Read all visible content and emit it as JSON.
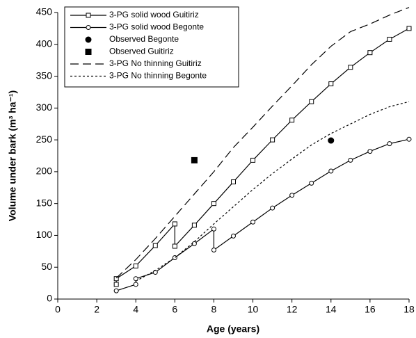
{
  "chart_data": {
    "type": "line",
    "x_label": "Age (years)",
    "y_label": "Volume under bark (m³ ha⁻¹)",
    "xlim": [
      0,
      18
    ],
    "xticks": [
      0,
      2,
      4,
      6,
      8,
      10,
      12,
      14,
      16,
      18
    ],
    "ylim": [
      0,
      450
    ],
    "yticks": [
      0,
      50,
      100,
      150,
      200,
      250,
      300,
      350,
      400,
      450
    ],
    "legend": "upper left",
    "series": [
      {
        "name": "3-PG solid wood Guitiriz",
        "color": "#000000",
        "marker": "square",
        "line": "solid",
        "x": [
          3,
          3,
          4,
          5,
          6,
          6,
          7,
          8,
          9,
          10,
          11,
          12,
          13,
          14,
          15,
          16,
          17,
          18
        ],
        "values": [
          23,
          32,
          52,
          84,
          118,
          83,
          116,
          150,
          184,
          218,
          250,
          281,
          310,
          338,
          364,
          387,
          408,
          425
        ]
      },
      {
        "name": "3-PG solid wood Begonte",
        "color": "#000000",
        "marker": "circle",
        "line": "solid",
        "x": [
          3,
          4,
          4,
          5,
          6,
          7,
          8,
          8,
          9,
          10,
          11,
          12,
          13,
          14,
          15,
          16,
          17,
          18
        ],
        "values": [
          13,
          23,
          32,
          42,
          65,
          87,
          110,
          77,
          99,
          121,
          143,
          163,
          182,
          201,
          218,
          232,
          244,
          251
        ]
      },
      {
        "name": "Observed Begonte",
        "color": "#000000",
        "marker": "circle-filled",
        "line": "none",
        "x": [
          14
        ],
        "values": [
          249
        ]
      },
      {
        "name": "Observed Guitiriz",
        "color": "#000000",
        "marker": "square-filled",
        "line": "none",
        "x": [
          7
        ],
        "values": [
          218
        ]
      },
      {
        "name": "3-PG No thinning Guitiriz",
        "color": "#000000",
        "marker": "none",
        "line": "dashed",
        "x": [
          3,
          4,
          5,
          6,
          7,
          8,
          9,
          10,
          11,
          12,
          13,
          14,
          15,
          16,
          17,
          18
        ],
        "values": [
          33,
          62,
          95,
          130,
          165,
          200,
          238,
          270,
          303,
          335,
          368,
          397,
          420,
          432,
          446,
          458
        ]
      },
      {
        "name": "3-PG No thinning Begonte",
        "color": "#000000",
        "marker": "none",
        "line": "dotted",
        "x": [
          4,
          5,
          6,
          7,
          8,
          9,
          10,
          11,
          12,
          13,
          14,
          15,
          16,
          17,
          18
        ],
        "values": [
          28,
          45,
          65,
          90,
          118,
          145,
          172,
          197,
          220,
          242,
          260,
          275,
          290,
          302,
          310
        ]
      }
    ]
  }
}
